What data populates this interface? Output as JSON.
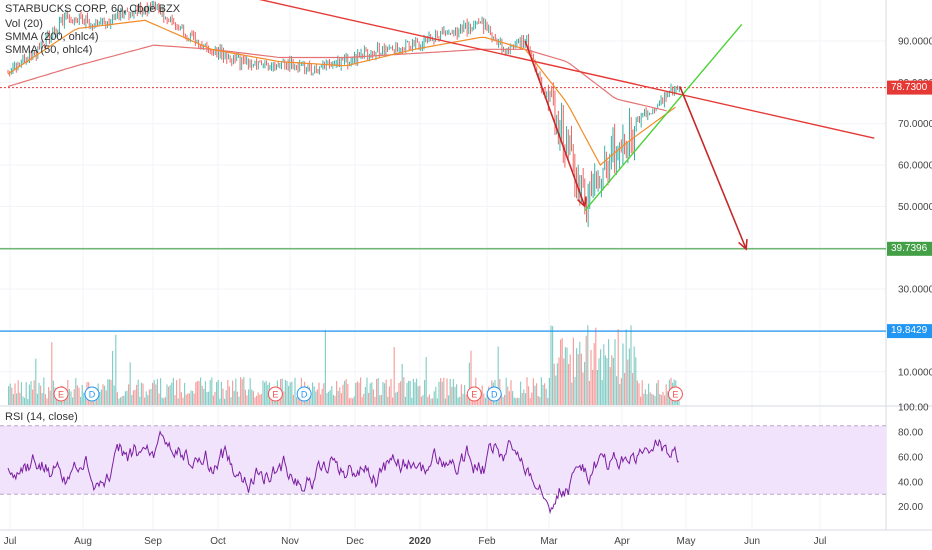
{
  "legend": {
    "symbol": "STARBUCKS CORP, 60, Cboe BZX",
    "vol": "Vol (20)",
    "smma200": "SMMA (200, ohlc4)",
    "smma50": "SMMA (50, ohlc4)",
    "rsi": "RSI (14, close)"
  },
  "colors": {
    "up": "#26a69a",
    "down": "#ef5350",
    "smma200": "#e57373",
    "smma50": "#f28c28",
    "trend_red": "#e53935",
    "trend_green": "#4cd137",
    "arrow": "#c62828",
    "h_green": "#43a047",
    "h_blue": "#2196f3",
    "rsi_line": "#7b1fa2",
    "rsi_band": "#f1e3fb"
  },
  "price_tags": [
    {
      "label": "78.7300",
      "value": 78.73,
      "color": "#e53935"
    },
    {
      "label": "39.7396",
      "value": 39.7396,
      "color": "#43a047"
    },
    {
      "label": "19.8429",
      "value": 19.8429,
      "color": "#2196f3"
    }
  ],
  "chart_data": [
    {
      "type": "line",
      "title": "STARBUCKS CORP, 60, Cboe BZX",
      "x_ticks": [
        "Jul",
        "Aug",
        "Sep",
        "Oct",
        "Nov",
        "Dec",
        "2020",
        "Feb",
        "Mar",
        "Apr",
        "May",
        "Jun",
        "Jul"
      ],
      "y_ticks": [
        "90.0000",
        "80.0000",
        "70.0000",
        "60.0000",
        "50.0000",
        "40.0000",
        "30.0000",
        "20.0000",
        "10.0000"
      ],
      "ylim": [
        5,
        100
      ],
      "series": [
        {
          "kind": "price",
          "x": [
            "2019-07-01",
            "2019-07-15",
            "2019-07-27",
            "2019-08-10",
            "2019-08-25",
            "2019-09-05",
            "2019-09-20",
            "2019-10-05",
            "2019-10-20",
            "2019-11-01",
            "2019-11-15",
            "2019-12-01",
            "2019-12-15",
            "2020-01-01",
            "2020-01-15",
            "2020-02-01",
            "2020-02-10",
            "2020-02-20",
            "2020-03-01",
            "2020-03-10",
            "2020-03-18",
            "2020-03-25",
            "2020-04-01",
            "2020-04-10",
            "2020-04-20",
            "2020-04-30"
          ],
          "y": [
            83,
            88,
            96,
            94,
            97,
            98,
            91,
            87,
            84,
            85,
            83,
            85,
            88,
            89,
            92,
            94,
            88,
            90,
            75,
            65,
            50,
            60,
            63,
            70,
            75,
            79
          ]
        },
        {
          "kind": "smma200",
          "x": [
            "2019-07-01",
            "2019-08-01",
            "2019-09-05",
            "2019-10-01",
            "2019-11-01",
            "2019-12-01",
            "2020-01-01",
            "2020-02-01",
            "2020-02-20",
            "2020-03-10",
            "2020-04-01",
            "2020-04-25"
          ],
          "y": [
            79,
            84,
            89,
            88,
            86,
            86,
            87,
            88,
            88,
            85,
            76,
            73
          ]
        },
        {
          "kind": "smma50",
          "x": [
            "2019-07-01",
            "2019-08-01",
            "2019-09-01",
            "2019-10-01",
            "2019-11-01",
            "2019-12-01",
            "2020-01-01",
            "2020-02-01",
            "2020-02-20",
            "2020-03-10",
            "2020-03-25",
            "2020-04-05",
            "2020-04-28"
          ],
          "y": [
            82,
            93,
            95,
            88,
            85,
            84,
            88,
            91,
            88,
            75,
            60,
            65,
            74
          ]
        }
      ],
      "trendlines": [
        {
          "name": "resistance",
          "x": [
            "2019-10-15",
            "2020-07-27"
          ],
          "y": [
            101,
            66.5
          ]
        },
        {
          "name": "support",
          "x": [
            "2020-03-18",
            "2020-05-28"
          ],
          "y": [
            49,
            94
          ]
        },
        {
          "name": "drop-arrow",
          "x": [
            "2020-02-20",
            "2020-03-18"
          ],
          "y": [
            90,
            50
          ]
        },
        {
          "name": "target-arrow",
          "x": [
            "2020-04-30",
            "2020-05-30"
          ],
          "y": [
            79,
            39.7
          ]
        }
      ],
      "hlines": [
        78.73,
        39.7396,
        19.8429
      ],
      "events": [
        {
          "label": "E",
          "x": "2019-07-25"
        },
        {
          "label": "D",
          "x": "2019-08-08"
        },
        {
          "label": "E",
          "x": "2019-10-30"
        },
        {
          "label": "D",
          "x": "2019-11-12"
        },
        {
          "label": "E",
          "x": "2020-01-28"
        },
        {
          "label": "D",
          "x": "2020-02-06"
        },
        {
          "label": "E",
          "x": "2020-04-28"
        }
      ]
    },
    {
      "type": "line",
      "title": "RSI (14, close)",
      "y_ticks": [
        "100.00",
        "80.00",
        "60.00",
        "40.00",
        "20.00"
      ],
      "ylim": [
        10,
        100
      ],
      "bands": [
        30,
        85
      ],
      "series": [
        {
          "name": "RSI",
          "x_range": [
            "2019-07-01",
            "2020-04-30"
          ],
          "typical_range": [
            25,
            85
          ]
        }
      ]
    }
  ]
}
